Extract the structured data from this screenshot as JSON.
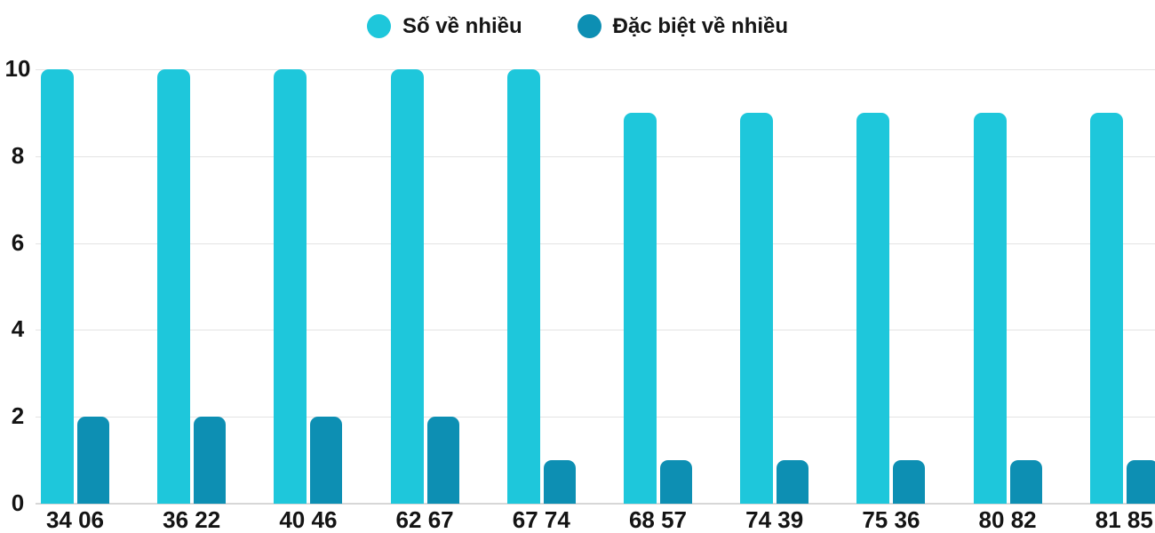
{
  "chart_data": {
    "type": "bar",
    "title": "",
    "xlabel": "",
    "ylabel": "",
    "categories": [
      "34 06",
      "36 22",
      "40 46",
      "62 67",
      "67 74",
      "68 57",
      "74 39",
      "75 36",
      "80 82",
      "81 85"
    ],
    "series": [
      {
        "name": "Số về nhiều",
        "color": "#1EC7DB",
        "values": [
          10,
          10,
          10,
          10,
          10,
          9,
          9,
          9,
          9,
          9
        ]
      },
      {
        "name": "Đặc biệt về nhiều",
        "color": "#0D8FB3",
        "values": [
          2,
          2,
          2,
          2,
          1,
          1,
          1,
          1,
          1,
          1
        ]
      }
    ],
    "ylim": [
      0,
      10
    ],
    "yticks": [
      0,
      2,
      4,
      6,
      8,
      10
    ],
    "grid": true,
    "legend_position": "top"
  },
  "colors": {
    "background": "#ffffff",
    "gridline": "#e3e3e3",
    "axis_line": "#d7d7d7",
    "text": "#141414"
  }
}
